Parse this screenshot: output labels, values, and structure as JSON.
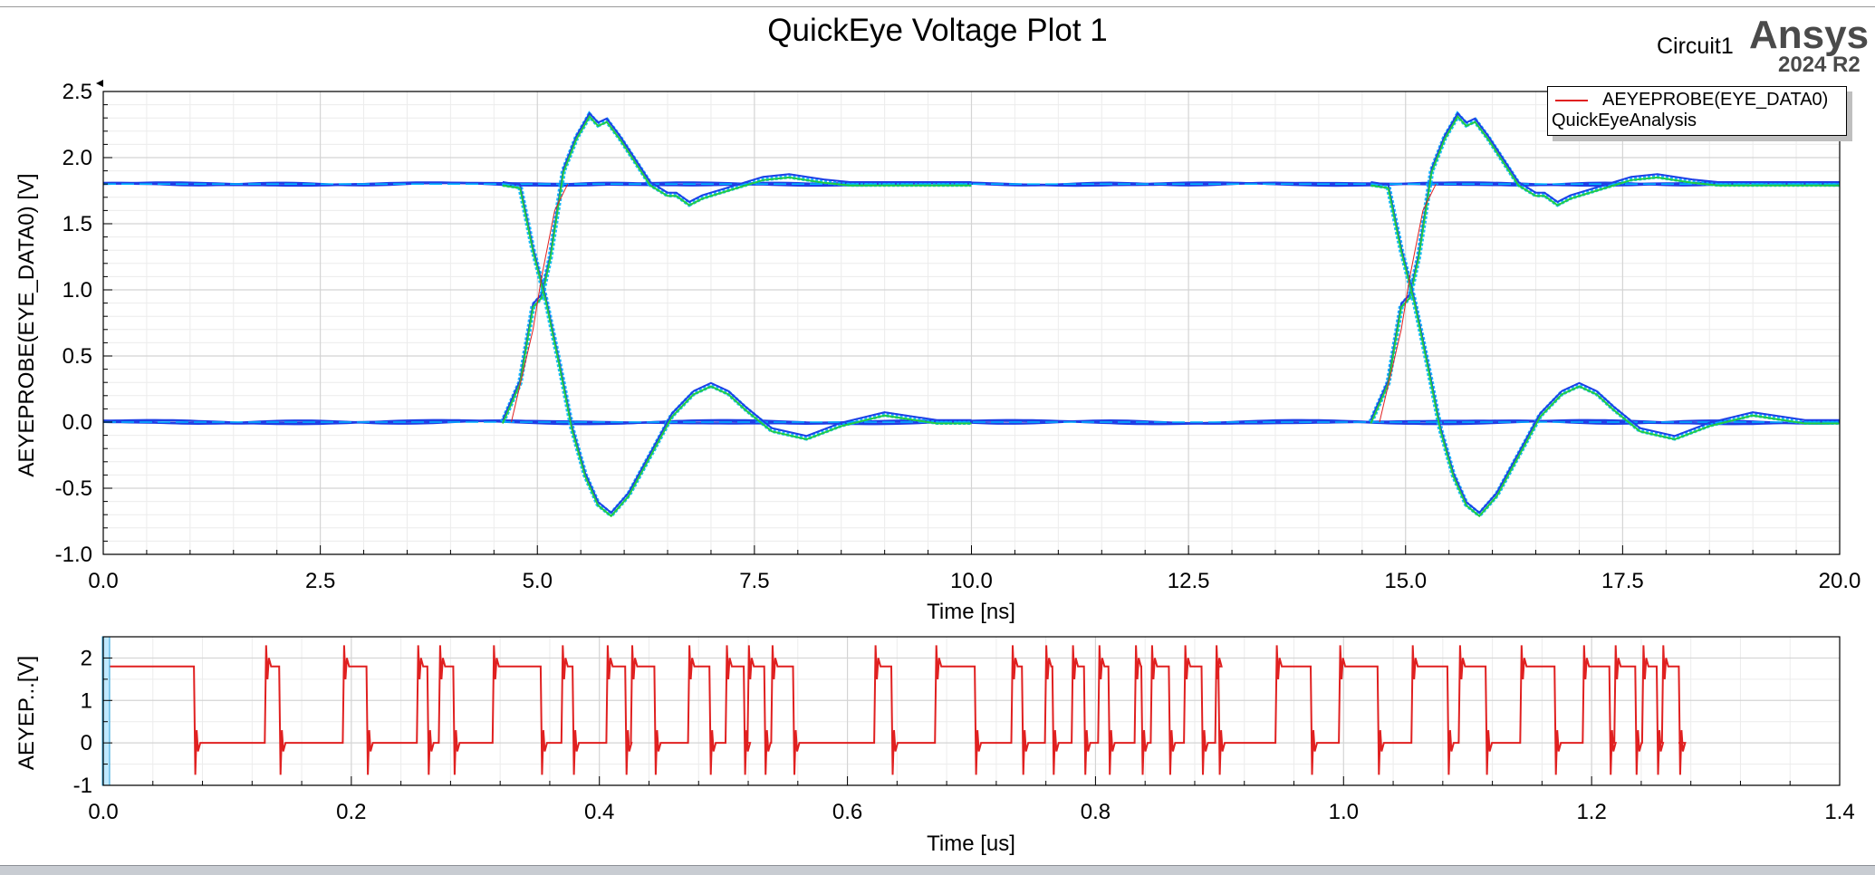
{
  "window": {
    "title": "QuickEye Voltage Plot 1",
    "circuit_label": "Circuit1",
    "brand": "Ansys",
    "brand_version": "2024 R2"
  },
  "legend": {
    "series_label": "AEYEPROBE(EYE_DATA0)",
    "subtitle": "QuickEyeAnalysis",
    "color": "#e02020"
  },
  "chart_data": [
    {
      "type": "line",
      "name": "eye-diagram",
      "xlabel": "Time [ns]",
      "ylabel": "AEYEPROBE(EYE_DATA0) [V]",
      "xlim": [
        0,
        20
      ],
      "ylim": [
        -1,
        2.5
      ],
      "xticks": [
        "0.0",
        "2.5",
        "5.0",
        "7.5",
        "10.0",
        "12.5",
        "15.0",
        "17.5",
        "20.0"
      ],
      "yticks": [
        "2.5",
        "2.0",
        "1.5",
        "1.0",
        "0.5",
        "0.0",
        "-0.5",
        "-1.0"
      ],
      "grid": true,
      "colors": {
        "levels": "#1f3fe6",
        "edges": "#22cc44",
        "fill": "#00b4ff",
        "trace": "#e02020"
      },
      "high_level": 1.8,
      "low_level": 0.0,
      "rising_edge": {
        "x": [
          0.0,
          4.6,
          4.8,
          4.95,
          5.05,
          5.15,
          5.3,
          5.45,
          5.6,
          5.7,
          5.8,
          5.95,
          6.1,
          6.3,
          6.5,
          6.6,
          6.75,
          6.9,
          7.0,
          7.2,
          7.6,
          7.9,
          8.3,
          8.6,
          10.0
        ],
        "y": [
          0.0,
          0.0,
          0.3,
          0.88,
          0.95,
          1.25,
          1.9,
          2.15,
          2.32,
          2.25,
          2.28,
          2.15,
          2.0,
          1.8,
          1.72,
          1.72,
          1.65,
          1.7,
          1.72,
          1.76,
          1.84,
          1.86,
          1.82,
          1.8,
          1.8
        ]
      },
      "falling_edge": {
        "x": [
          0.0,
          4.6,
          4.8,
          4.95,
          5.1,
          5.25,
          5.4,
          5.55,
          5.7,
          5.85,
          6.05,
          6.3,
          6.55,
          6.8,
          7.0,
          7.2,
          7.4,
          7.7,
          8.1,
          8.5,
          9.0,
          9.6,
          10.0
        ],
        "y": [
          1.8,
          1.8,
          1.78,
          1.3,
          0.92,
          0.45,
          -0.05,
          -0.4,
          -0.62,
          -0.7,
          -0.55,
          -0.25,
          0.05,
          0.22,
          0.28,
          0.22,
          0.1,
          -0.06,
          -0.12,
          -0.02,
          0.06,
          0.0,
          0.0
        ]
      }
    },
    {
      "type": "line",
      "name": "transient",
      "xlabel": "Time [us]",
      "ylabel": "AEYEP...[V]",
      "xlim": [
        0,
        1.4
      ],
      "ylim": [
        -1,
        2.5
      ],
      "xticks": [
        "0.0",
        "0.2",
        "0.4",
        "0.6",
        "0.8",
        "1.0",
        "1.2",
        "1.4"
      ],
      "yticks": [
        "2",
        "1",
        "0",
        "-1"
      ],
      "grid": true,
      "end_time": 1.27,
      "transitions": [
        0.0731,
        0.1302,
        0.1418,
        0.1931,
        0.2122,
        0.2528,
        0.2613,
        0.2705,
        0.2822,
        0.3139,
        0.3527,
        0.3694,
        0.3784,
        0.4056,
        0.4208,
        0.4254,
        0.4443,
        0.4715,
        0.4887,
        0.5017,
        0.5164,
        0.5195,
        0.5329,
        0.5385,
        0.5561,
        0.6216,
        0.6354,
        0.6706,
        0.7026,
        0.7321,
        0.7407,
        0.7592,
        0.7652,
        0.7808,
        0.7907,
        0.8021,
        0.8104,
        0.8315,
        0.8369,
        0.8445,
        0.8591,
        0.8713,
        0.8855,
        0.8965,
        0.8991,
        0.9451,
        0.9735,
        0.9962,
        1.0274,
        1.0547,
        1.0837,
        1.0928,
        1.1145,
        1.1424,
        1.1701,
        1.1928,
        1.2143,
        1.2183,
        1.2352,
        1.2407,
        1.2525,
        1.2567,
        1.2703
      ],
      "start_level": 1.8
    }
  ]
}
